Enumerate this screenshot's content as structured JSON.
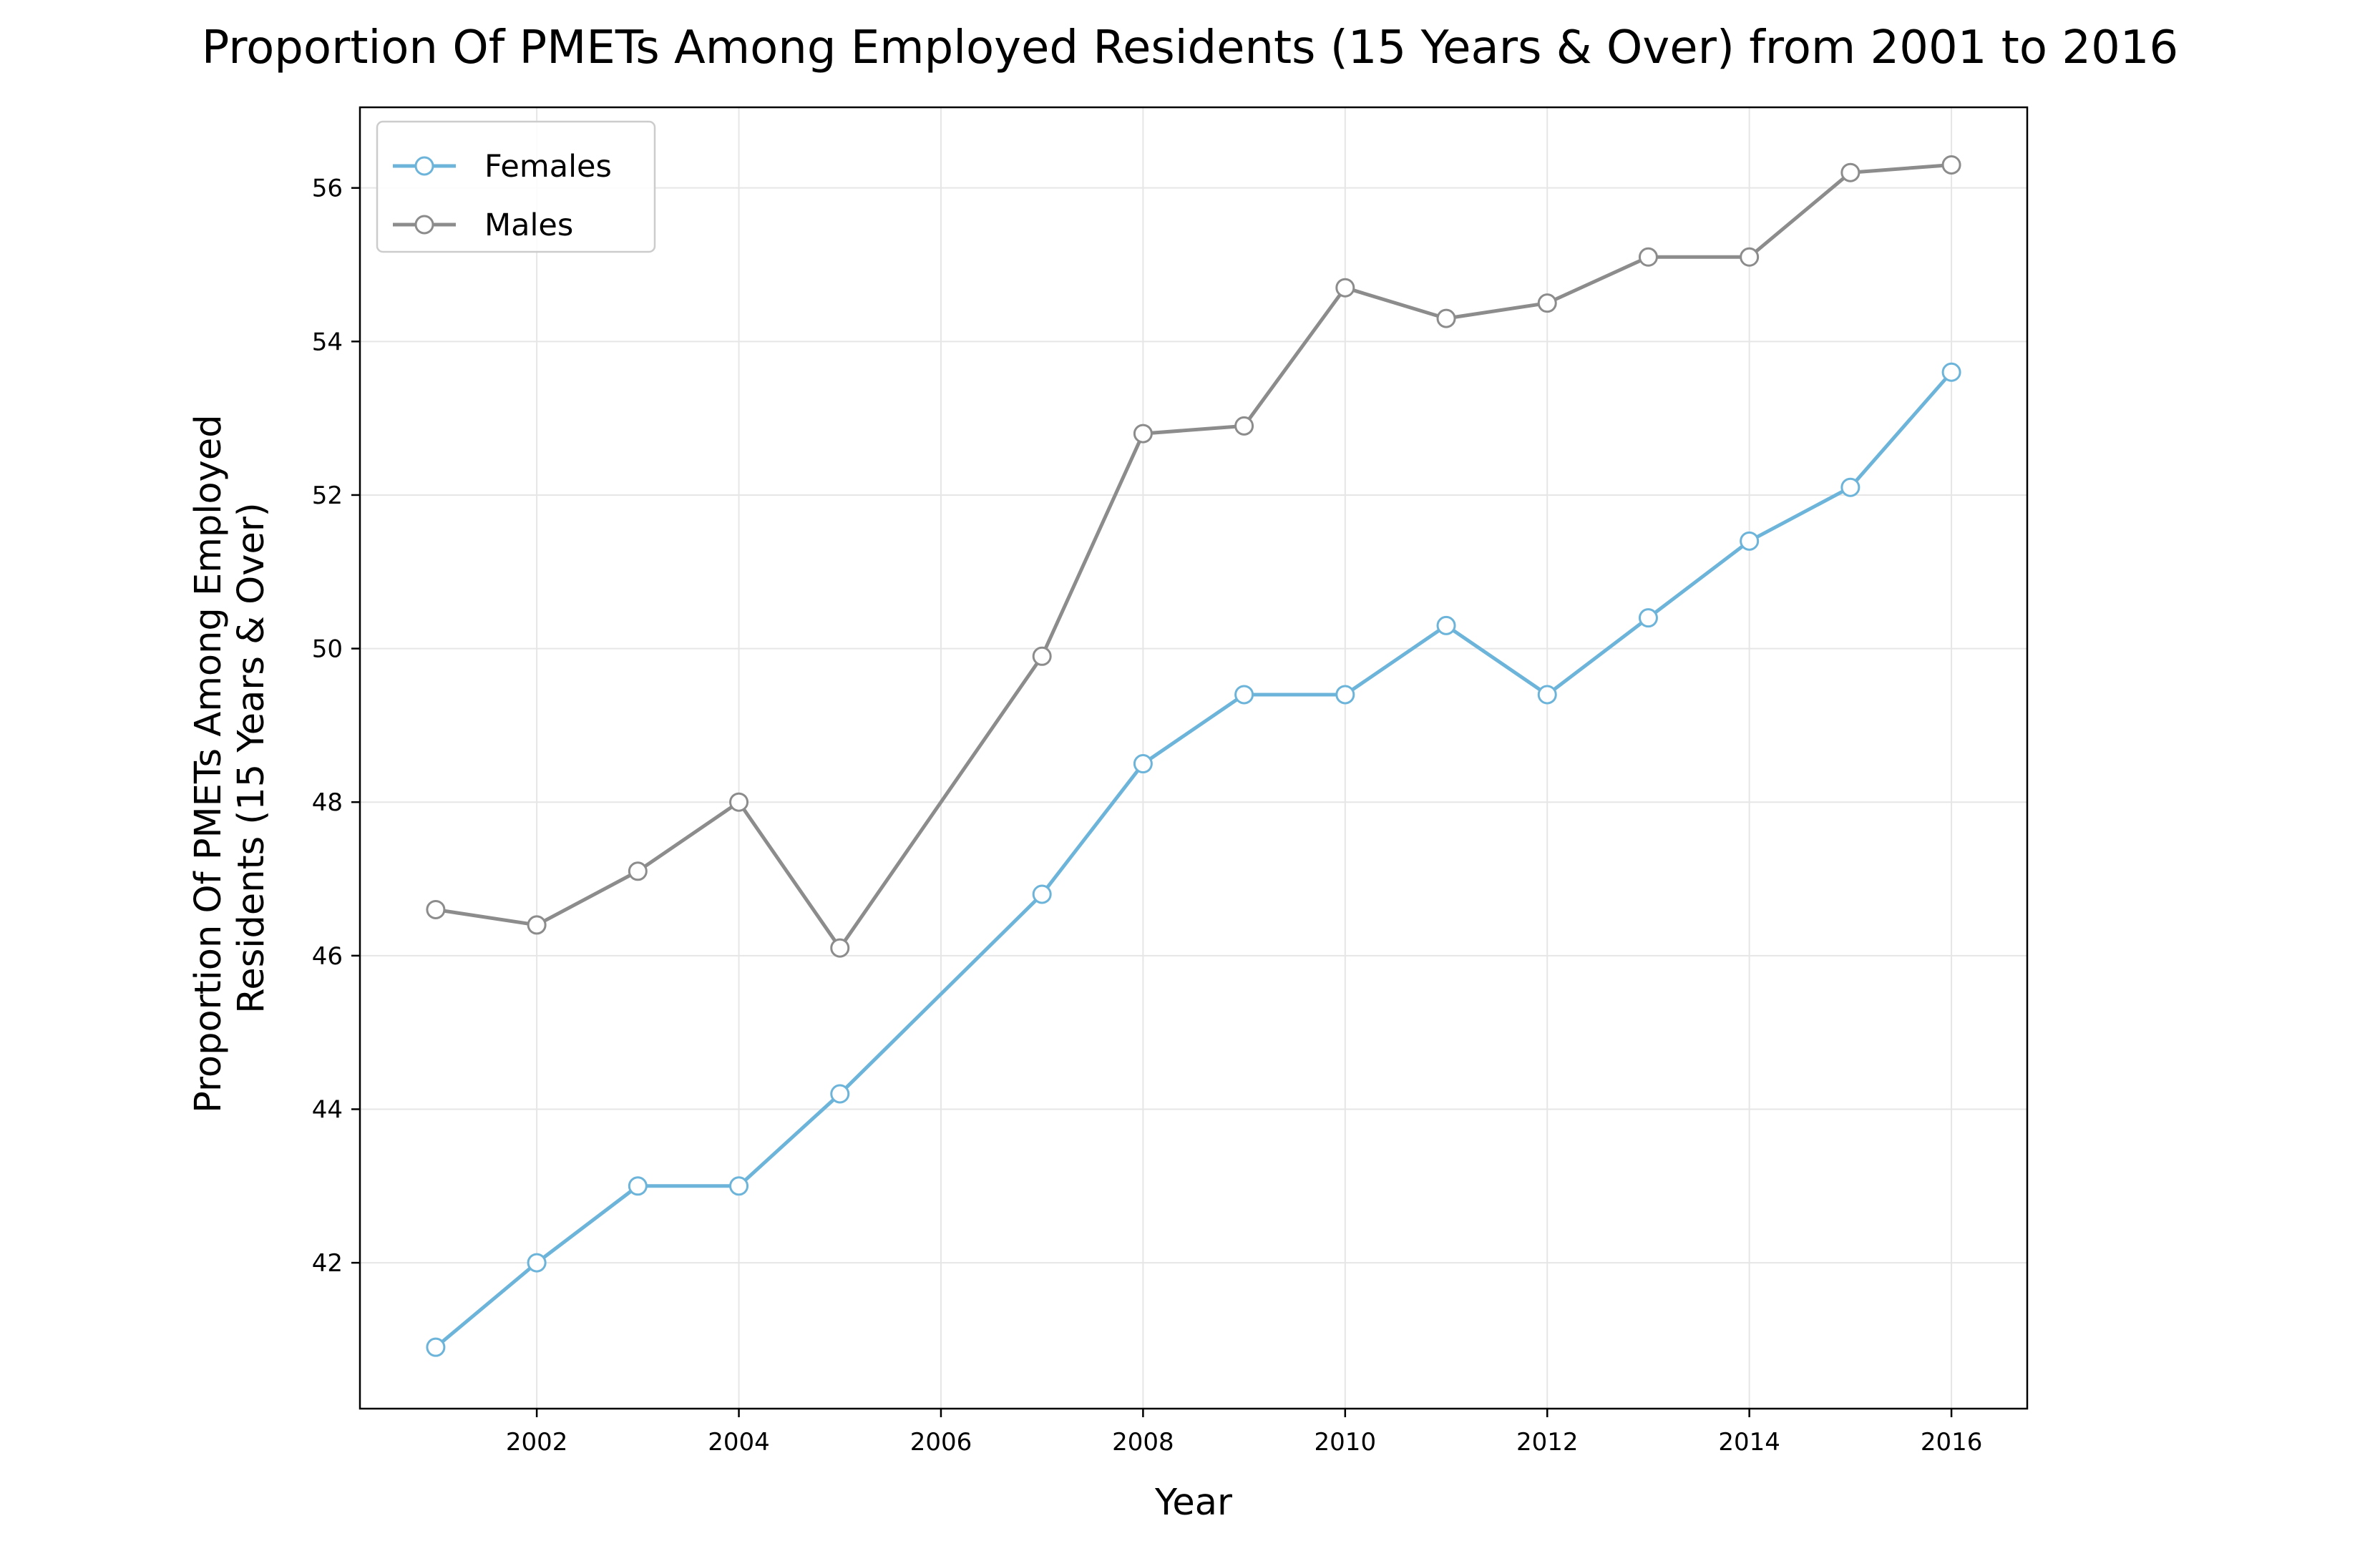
{
  "chart_data": {
    "type": "line",
    "title": "Proportion Of PMETs Among Employed Residents (15 Years & Over) from 2001 to 2016",
    "xlabel": "Year",
    "ylabel_lines": [
      "Proportion Of PMETs Among Employed",
      "Residents (15 Years & Over)"
    ],
    "x": [
      2001,
      2002,
      2003,
      2004,
      2005,
      2007,
      2008,
      2009,
      2010,
      2011,
      2012,
      2013,
      2014,
      2015,
      2016
    ],
    "xlim": [
      2000.25,
      2016.75
    ],
    "ylim": [
      40.1,
      57.05
    ],
    "xticks": [
      2002,
      2004,
      2006,
      2008,
      2010,
      2012,
      2014,
      2016
    ],
    "yticks": [
      42,
      44,
      46,
      48,
      50,
      52,
      54,
      56
    ],
    "grid": true,
    "legend_position": "top-left",
    "series": [
      {
        "name": "Females",
        "color": "#6cb4d9",
        "values": [
          40.9,
          42.0,
          43.0,
          43.0,
          44.2,
          46.8,
          48.5,
          49.4,
          49.4,
          50.3,
          49.4,
          50.4,
          51.4,
          52.1,
          53.6
        ]
      },
      {
        "name": "Males",
        "color": "#8c8c8c",
        "values": [
          46.6,
          46.4,
          47.1,
          48.0,
          46.1,
          49.9,
          52.8,
          52.9,
          54.7,
          54.3,
          54.5,
          55.1,
          55.1,
          56.2,
          56.3
        ]
      }
    ]
  }
}
